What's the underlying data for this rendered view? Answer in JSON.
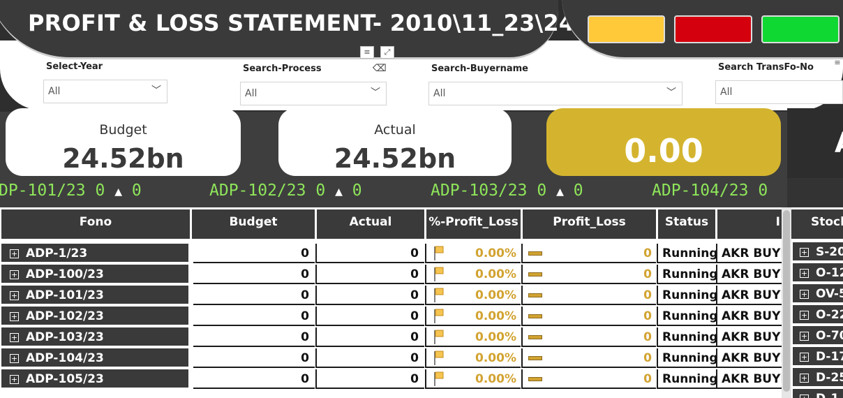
{
  "header": {
    "title": "PROFIT & LOSS STATEMENT- 2010\\11_23\\24",
    "status_buttons": [
      {
        "name": "yellow",
        "color": "#ffc93a"
      },
      {
        "name": "red",
        "color": "#d4000e"
      },
      {
        "name": "green",
        "color": "#10d833"
      }
    ]
  },
  "slicers": [
    {
      "label": "Select-Year",
      "value": "All"
    },
    {
      "label": "Search-Process",
      "value": "All"
    },
    {
      "label": "Search-Buyername",
      "value": "All"
    },
    {
      "label": "Search TransFo-No",
      "value": "All"
    }
  ],
  "cards": {
    "budget": {
      "label": "Budget",
      "value": "24.52bn"
    },
    "actual": {
      "label": "Actual",
      "value": "24.52bn"
    },
    "variance": {
      "value": "0.00",
      "color": "#d4b42f"
    },
    "partial_letter": "A"
  },
  "ticker": [
    {
      "code": "DP-101/23",
      "v1": "0",
      "v2": "0"
    },
    {
      "code": "ADP-102/23",
      "v1": "0",
      "v2": "0"
    },
    {
      "code": "ADP-103/23",
      "v1": "0",
      "v2": "0"
    },
    {
      "code": "ADP-104/23",
      "v1": "0",
      "v2": ""
    }
  ],
  "table": {
    "columns": [
      "Fono",
      "Budget",
      "Actual",
      "%-Profit_Loss",
      "Profit_Loss",
      "Status",
      "I"
    ],
    "rows": [
      {
        "fono": "ADP-1/23",
        "budget": "0",
        "actual": "0",
        "pct": "0.00%",
        "pl": "0",
        "status": "Running",
        "buyer": "AKR BUYER"
      },
      {
        "fono": "ADP-100/23",
        "budget": "0",
        "actual": "0",
        "pct": "0.00%",
        "pl": "0",
        "status": "Running",
        "buyer": "AKR BUYER"
      },
      {
        "fono": "ADP-101/23",
        "budget": "0",
        "actual": "0",
        "pct": "0.00%",
        "pl": "0",
        "status": "Running",
        "buyer": "AKR BUYER"
      },
      {
        "fono": "ADP-102/23",
        "budget": "0",
        "actual": "0",
        "pct": "0.00%",
        "pl": "0",
        "status": "Running",
        "buyer": "AKR BUYER"
      },
      {
        "fono": "ADP-103/23",
        "budget": "0",
        "actual": "0",
        "pct": "0.00%",
        "pl": "0",
        "status": "Running",
        "buyer": "AKR BUYER"
      },
      {
        "fono": "ADP-104/23",
        "budget": "0",
        "actual": "0",
        "pct": "0.00%",
        "pl": "0",
        "status": "Running",
        "buyer": "AKR BUYER"
      },
      {
        "fono": "ADP-105/23",
        "budget": "0",
        "actual": "0",
        "pct": "0.00%",
        "pl": "0",
        "status": "Running",
        "buyer": "AKR BUYER"
      }
    ]
  },
  "stock_table": {
    "header": "Stock",
    "rows": [
      "S-20",
      "O-12",
      "OV-5",
      "O-22",
      "O-70",
      "D-17",
      "D-25",
      "D-1"
    ]
  },
  "colors": {
    "accent_gold": "#d2a331",
    "ticker_green": "#8ee55a",
    "dark_header": "#3a3a3a"
  }
}
